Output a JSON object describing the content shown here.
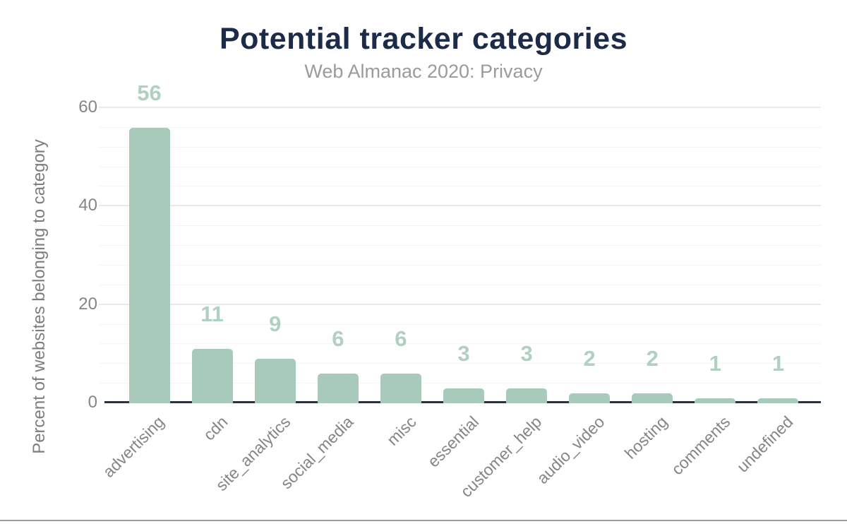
{
  "chart_data": {
    "type": "bar",
    "title": "Potential tracker categories",
    "subtitle": "Web Almanac 2020: Privacy",
    "ylabel": "Percent of websites belonging to category",
    "xlabel": "",
    "categories": [
      "advertising",
      "cdn",
      "site_analytics",
      "social_media",
      "misc",
      "essential",
      "customer_help",
      "audio_video",
      "hosting",
      "comments",
      "undefined"
    ],
    "values": [
      56,
      11,
      9,
      6,
      6,
      3,
      3,
      2,
      2,
      1,
      1
    ],
    "ylim": [
      0,
      60
    ],
    "yticks": [
      0,
      20,
      40,
      60
    ],
    "minor_grid_step": 4,
    "grid": "on",
    "legend": "none",
    "colors": {
      "bar": "#a8cabb",
      "value_label": "#b0d1c2",
      "title": "#1b2b48",
      "subtitle": "#9b9b9b",
      "axis_text": "#858585",
      "y_axis_title": "#7d7d7d",
      "axis_line": "#2b323e",
      "major_grid": "#e9e9e9",
      "minor_grid": "#f4f4f4",
      "bottom_border": "#9b9b9b",
      "background": "#ffffff"
    }
  }
}
